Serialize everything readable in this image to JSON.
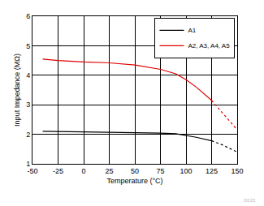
{
  "chart_data": {
    "type": "line",
    "xlabel": "Temperature (°C)",
    "ylabel": "Input Impedance (MΩ)",
    "xlim": [
      -50,
      150
    ],
    "xticks": [
      -50,
      -25,
      0,
      25,
      50,
      75,
      100,
      125,
      150
    ],
    "ylim": [
      1,
      6
    ],
    "yticks": [
      1,
      2,
      3,
      4,
      5,
      6
    ],
    "grid": true,
    "legend": "top right",
    "annotations": [
      "D015"
    ],
    "series": [
      {
        "name": "A1",
        "color": "#000000",
        "line_style": "solid",
        "x": [
          -40,
          -25,
          0,
          25,
          50,
          75,
          90,
          100,
          110,
          125
        ],
        "values": [
          2.1,
          2.1,
          2.08,
          2.07,
          2.06,
          2.04,
          2.02,
          1.97,
          1.9,
          1.78
        ]
      },
      {
        "name": "A1",
        "color": "#000000",
        "line_style": "dotted",
        "x": [
          125,
          135,
          150
        ],
        "values": [
          1.78,
          1.65,
          1.4
        ]
      },
      {
        "name": "A2, A3, A4, A5",
        "color": "#e00000",
        "line_style": "solid",
        "x": [
          -40,
          -25,
          0,
          25,
          50,
          75,
          90,
          100,
          110,
          125
        ],
        "values": [
          4.55,
          4.5,
          4.45,
          4.42,
          4.35,
          4.2,
          4.05,
          3.85,
          3.6,
          3.15
        ]
      },
      {
        "name": "A2, A3, A4, A5",
        "color": "#e00000",
        "line_style": "dotted",
        "x": [
          125,
          135,
          150
        ],
        "values": [
          3.15,
          2.75,
          2.15
        ]
      }
    ]
  }
}
